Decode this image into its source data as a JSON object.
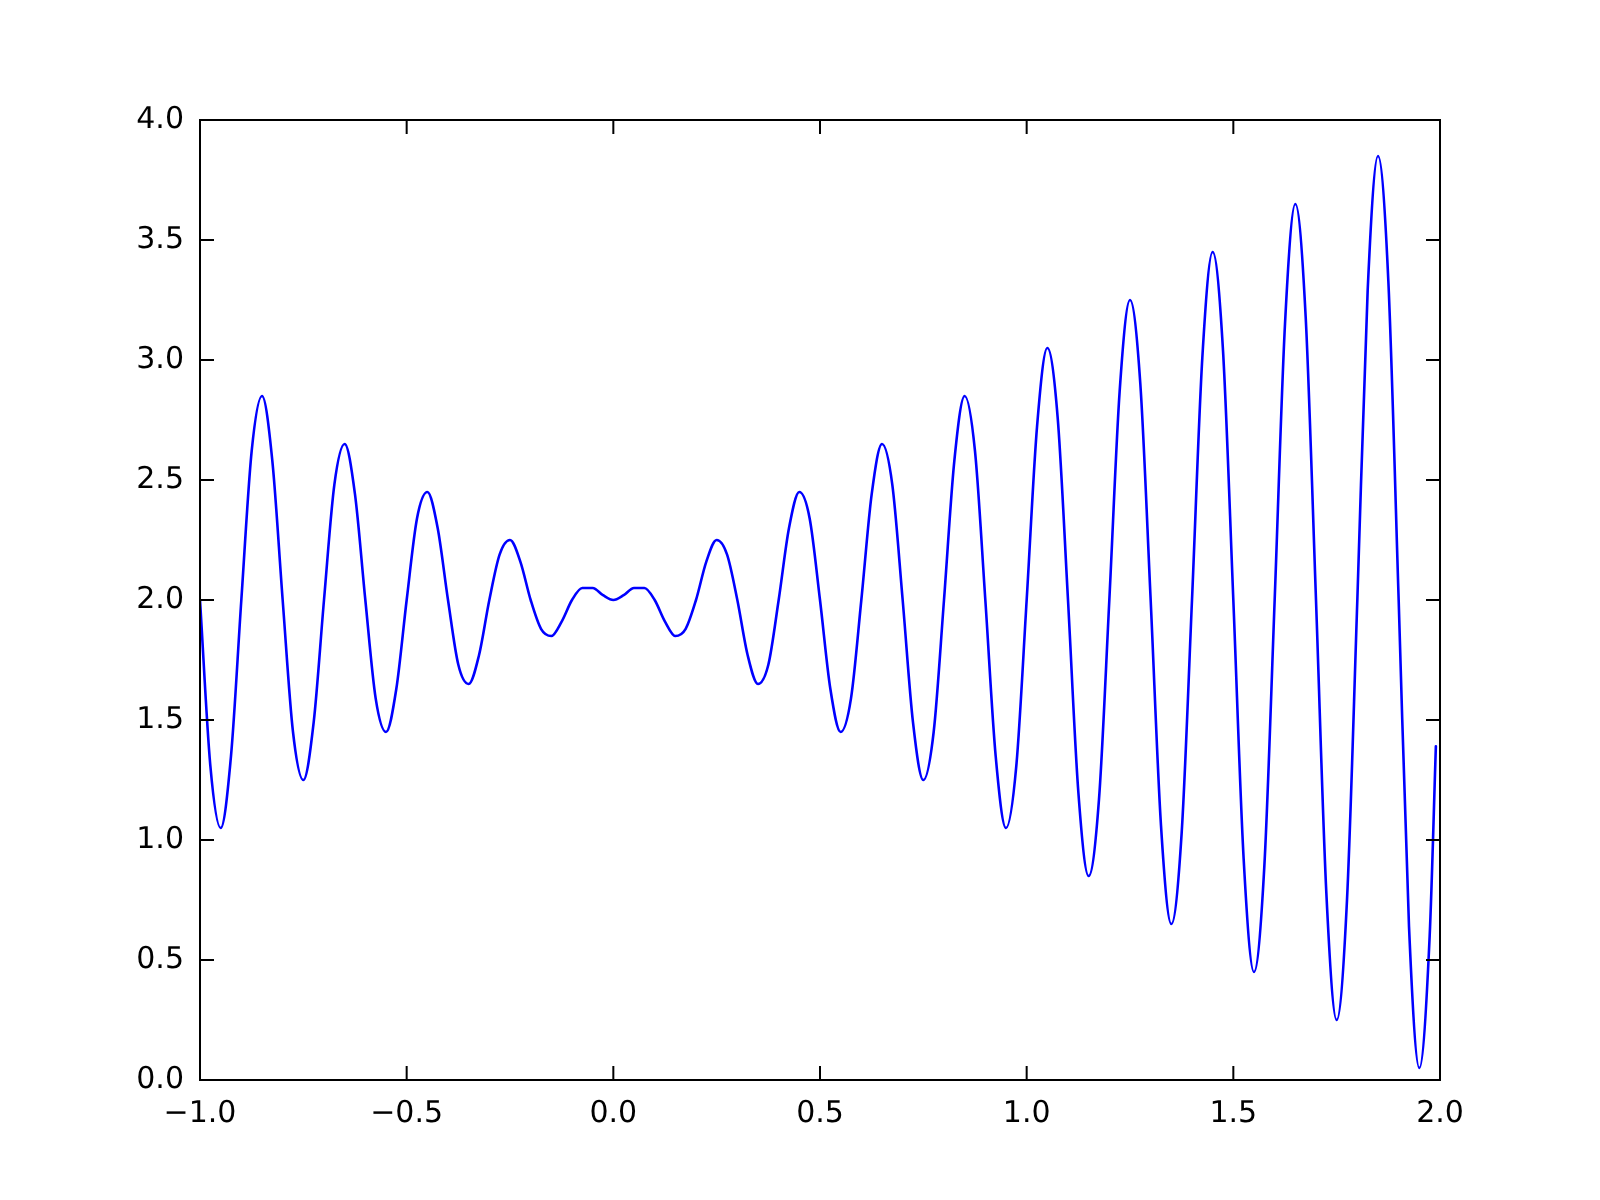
{
  "chart_data": {
    "type": "line",
    "xlim": [
      -1,
      2
    ],
    "xticks": [
      {
        "value": -1,
        "label": "−1.0"
      },
      {
        "value": -0.5,
        "label": "−0.5"
      },
      {
        "value": 0,
        "label": "0.0"
      },
      {
        "value": 0.5,
        "label": "0.5"
      },
      {
        "value": 1,
        "label": "1.0"
      },
      {
        "value": 1.5,
        "label": "1.5"
      },
      {
        "value": 2,
        "label": "2.0"
      }
    ],
    "ylim": [
      0,
      4
    ],
    "yticks": [
      {
        "value": 0,
        "label": "0.0"
      },
      {
        "value": 0.5,
        "label": "0.5"
      },
      {
        "value": 1,
        "label": "1.0"
      },
      {
        "value": 1.5,
        "label": "1.5"
      },
      {
        "value": 2,
        "label": "2.0"
      },
      {
        "value": 2.5,
        "label": "2.5"
      },
      {
        "value": 3,
        "label": "3.0"
      },
      {
        "value": 3.5,
        "label": "3.5"
      },
      {
        "value": 4,
        "label": "4.0"
      }
    ],
    "grid": false,
    "legend": false,
    "marker": "none",
    "line_style": "solid",
    "series": [
      {
        "color": "#0000ff",
        "x": [
          -1,
          -0.975,
          -0.95,
          -0.925,
          -0.9,
          -0.875,
          -0.85,
          -0.825,
          -0.8,
          -0.775,
          -0.75,
          -0.725,
          -0.7,
          -0.675,
          -0.65,
          -0.625,
          -0.6,
          -0.575,
          -0.55,
          -0.525,
          -0.5,
          -0.475,
          -0.45,
          -0.425,
          -0.4,
          -0.375,
          -0.35,
          -0.325,
          -0.3,
          -0.275,
          -0.25,
          -0.225,
          -0.2,
          -0.175,
          -0.15,
          -0.125,
          -0.1,
          -0.075,
          -0.05,
          -0.025,
          0,
          0.025,
          0.05,
          0.075,
          0.1,
          0.125,
          0.15,
          0.175,
          0.2,
          0.225,
          0.25,
          0.275,
          0.3,
          0.325,
          0.35,
          0.375,
          0.4,
          0.425,
          0.45,
          0.475,
          0.5,
          0.525,
          0.55,
          0.575,
          0.6,
          0.625,
          0.65,
          0.675,
          0.7,
          0.725,
          0.75,
          0.775,
          0.8,
          0.825,
          0.85,
          0.875,
          0.9,
          0.925,
          0.95,
          0.975,
          1,
          1.025,
          1.05,
          1.075,
          1.1,
          1.125,
          1.15,
          1.175,
          1.2,
          1.225,
          1.25,
          1.275,
          1.3,
          1.325,
          1.35,
          1.375,
          1.4,
          1.425,
          1.45,
          1.475,
          1.5,
          1.525,
          1.55,
          1.575,
          1.6,
          1.625,
          1.65,
          1.675,
          1.7,
          1.725,
          1.75,
          1.775,
          1.8,
          1.825,
          1.85,
          1.875,
          1.9,
          1.925,
          1.95,
          1.975,
          1.99
        ],
        "values": [
          2,
          1.31,
          1.05,
          1.35,
          2,
          2.62,
          2.85,
          2.58,
          2,
          1.45,
          1.25,
          1.49,
          2,
          2.48,
          2.65,
          2.44,
          2,
          1.59,
          1.45,
          1.63,
          2,
          2.34,
          2.45,
          2.3,
          2,
          1.73,
          1.65,
          1.77,
          2,
          2.19,
          2.25,
          2.16,
          2,
          1.88,
          1.85,
          1.91,
          2,
          2.05,
          2.05,
          2.02,
          2,
          2.02,
          2.05,
          2.05,
          2,
          1.91,
          1.85,
          1.88,
          2,
          2.16,
          2.25,
          2.19,
          2,
          1.77,
          1.65,
          1.73,
          2,
          2.3,
          2.45,
          2.34,
          2,
          1.63,
          1.45,
          1.59,
          2,
          2.44,
          2.65,
          2.48,
          2,
          1.49,
          1.25,
          1.45,
          2,
          2.58,
          2.85,
          2.62,
          2,
          1.35,
          1.05,
          1.31,
          2,
          2.72,
          3.05,
          2.76,
          2,
          1.2,
          0.85,
          1.17,
          2,
          2.87,
          3.25,
          2.9,
          2,
          1.06,
          0.65,
          1.03,
          2,
          3.01,
          3.45,
          3.04,
          2,
          0.92,
          0.45,
          0.89,
          2,
          3.15,
          3.65,
          3.18,
          2,
          0.78,
          0.25,
          0.75,
          2,
          3.29,
          3.85,
          3.33,
          2,
          0.64,
          0.05,
          0.6,
          1.39
        ]
      }
    ]
  }
}
